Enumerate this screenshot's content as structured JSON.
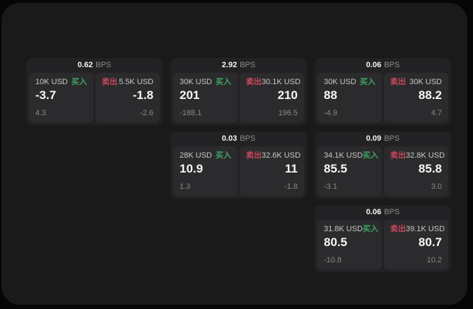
{
  "labels": {
    "bps": "BPS",
    "buy": "买入",
    "sell": "卖出"
  },
  "colors": {
    "background": "#060606",
    "panel": "#1a1a1b",
    "card": "#222224",
    "tile": "#2b2b2d",
    "buy_green": "#3ea564",
    "sell_red": "#c9485b"
  },
  "cards": [
    {
      "bps": "0.62",
      "buy": {
        "amount": "10K USD",
        "value": "-3.7",
        "change": "4.3"
      },
      "sell": {
        "amount": "5.5K USD",
        "value": "-1.8",
        "change": "-2.6"
      }
    },
    {
      "bps": "2.92",
      "buy": {
        "amount": "30K USD",
        "value": "201",
        "change": "-188.1"
      },
      "sell": {
        "amount": "30.1K USD",
        "value": "210",
        "change": "196.5"
      }
    },
    {
      "bps": "0.06",
      "buy": {
        "amount": "30K USD",
        "value": "88",
        "change": "-4.9"
      },
      "sell": {
        "amount": "30K USD",
        "value": "88.2",
        "change": "4.7"
      }
    },
    {
      "bps": "0.03",
      "buy": {
        "amount": "28K USD",
        "value": "10.9",
        "change": "1.3"
      },
      "sell": {
        "amount": "32.6K USD",
        "value": "11",
        "change": "-1.8"
      }
    },
    {
      "bps": "0.09",
      "buy": {
        "amount": "34.1K USD",
        "value": "85.5",
        "change": "-3.1"
      },
      "sell": {
        "amount": "32.8K USD",
        "value": "85.8",
        "change": "3.0"
      }
    },
    {
      "bps": "0.06",
      "buy": {
        "amount": "31.8K USD",
        "value": "80.5",
        "change": "-10.8"
      },
      "sell": {
        "amount": "39.1K USD",
        "value": "80.7",
        "change": "10.2"
      }
    }
  ]
}
